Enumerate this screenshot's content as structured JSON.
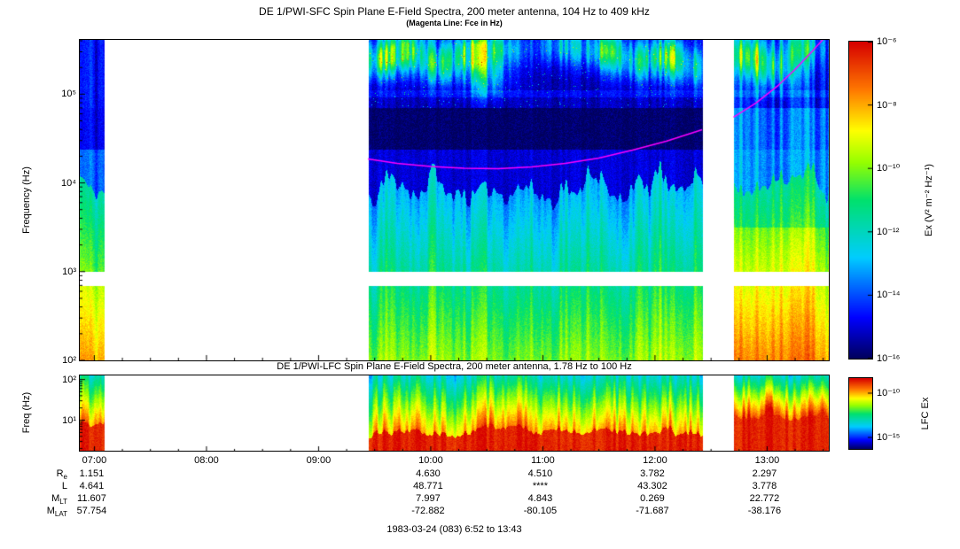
{
  "page": {
    "footer": "1983-03-24 (083) 6:52 to 13:43"
  },
  "chart_data": [
    {
      "type": "heatmap",
      "name": "sfc-spectrogram",
      "title": "DE 1/PWI-SFC  Spin Plane E-Field Spectra, 200 meter antenna, 104 Hz to 409 kHz",
      "subtitle": "(Magenta Line: Fce in Hz)",
      "ylabel": "Frequency (Hz)",
      "y_scale": "log",
      "y_log_range": [
        2.0,
        5.612
      ],
      "y_ticks": {
        "values": [
          5,
          4,
          3,
          2
        ],
        "labels": [
          "10⁵",
          "10⁴",
          "10³",
          "10²"
        ]
      },
      "x_range_hours": [
        6.87,
        13.55
      ],
      "x_axis": {
        "hours": [
          7,
          8,
          9,
          10,
          11,
          12,
          13
        ],
        "labels": [
          "07:00",
          "08:00",
          "09:00",
          "10:00",
          "11:00",
          "12:00",
          "13:00"
        ]
      },
      "colorbar": {
        "label": "Ex (V² m⁻² Hz⁻¹)",
        "range_log10": [
          -6,
          -16
        ],
        "tick_values": [
          -6,
          -8,
          -10,
          -12,
          -14,
          -16
        ],
        "tick_labels": [
          "10⁻⁶",
          "10⁻⁸",
          "10⁻¹⁰",
          "10⁻¹²",
          "10⁻¹⁴",
          "10⁻¹⁶"
        ]
      },
      "data_segments_hours": [
        [
          6.87,
          7.09
        ],
        [
          9.44,
          12.42
        ],
        [
          12.7,
          13.55
        ]
      ],
      "gap_band_hz": [
        700,
        1000
      ],
      "fce_line": {
        "color": "#ff00ff",
        "points_t_log10hz": [
          [
            9.44,
            4.27
          ],
          [
            9.7,
            4.22
          ],
          [
            10.0,
            4.185
          ],
          [
            10.3,
            4.165
          ],
          [
            10.6,
            4.16
          ],
          [
            10.9,
            4.18
          ],
          [
            11.2,
            4.22
          ],
          [
            11.5,
            4.28
          ],
          [
            11.8,
            4.37
          ],
          [
            12.1,
            4.47
          ],
          [
            12.42,
            4.6
          ],
          [
            12.7,
            4.74
          ],
          [
            12.9,
            4.9
          ],
          [
            13.1,
            5.1
          ],
          [
            13.25,
            5.28
          ],
          [
            13.4,
            5.48
          ],
          [
            13.5,
            5.62
          ],
          [
            13.55,
            5.72
          ]
        ]
      },
      "notes": "White vertical bands are data gaps (about 07:05-09:26 and 12:25-12:42); white horizontal band near 700-1000 Hz separates receiver bands; magenta curve is the electron cyclotron frequency Fce, dipping to about 1.5x10⁴ Hz near 10:30 and rising past 10⁵ Hz after 13:00; dark navy band near 2.5-7x10⁴ Hz; intense green-yellow broadband emissions below 10⁴ Hz; patchy cyan-green auroral emissions above 10⁵ Hz; strongest (yellow-red) emissions in the left edge column and after 12:42."
    },
    {
      "type": "heatmap",
      "name": "lfc-spectrogram",
      "title": "DE 1/PWI-LFC  Spin Plane E-Field Spectra, 200 meter antenna, 1.78 Hz to 100 Hz",
      "ylabel": "Freq (Hz)",
      "y_scale": "log",
      "y_log_range": [
        0.25,
        2.1
      ],
      "y_ticks": {
        "values": [
          2,
          1
        ],
        "labels": [
          "10²",
          "10¹"
        ]
      },
      "colorbar": {
        "label": "LFC Ex",
        "range_log10": [
          -8.3,
          -16.3
        ],
        "tick_values": [
          -10,
          -15
        ],
        "tick_labels": [
          "10⁻¹⁰",
          "10⁻¹⁵"
        ]
      },
      "notes": "Intense red-orange broadband emission at the lowest frequencies, grading to yellow then green-cyan toward 100 Hz; same data gaps as the SFC panel; emission extends to higher frequency at the left edge and after 12:42."
    }
  ],
  "ephemeris": {
    "value_hours": [
      7,
      10,
      11,
      12,
      13
    ],
    "rows": [
      {
        "label": "R",
        "sub": "e",
        "values": [
          "1.151",
          "4.630",
          "4.510",
          "3.782",
          "2.297"
        ]
      },
      {
        "label": "L",
        "sub": "",
        "values": [
          "4.641",
          "48.771",
          "****",
          "43.302",
          "3.778"
        ]
      },
      {
        "label": "M",
        "sub": "LT",
        "values": [
          "11.607",
          "7.997",
          "4.843",
          "0.269",
          "22.772"
        ]
      },
      {
        "label": "M",
        "sub": "LAT",
        "values": [
          "57.754",
          "-72.882",
          "-80.105",
          "-71.687",
          "-38.176"
        ]
      }
    ]
  }
}
